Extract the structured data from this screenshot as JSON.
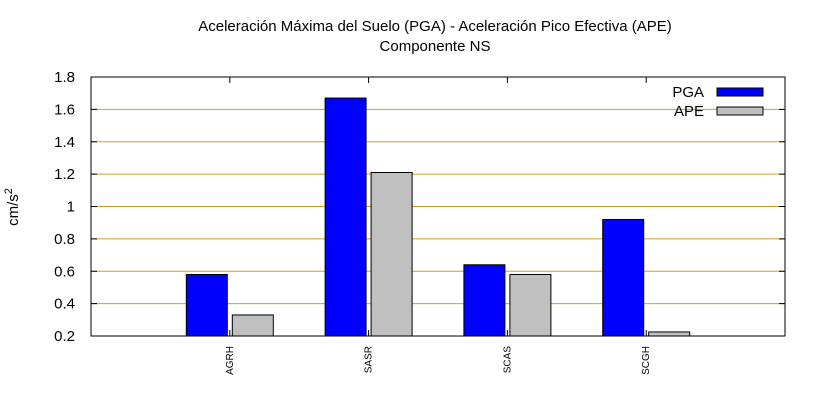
{
  "chart_data": {
    "type": "bar",
    "title": "Aceleración Máxima del Suelo (PGA) -  Aceleración Pico Efectiva (APE)",
    "subtitle": "Componente NS",
    "ylabel_base": "cm/s",
    "ylabel_sup": "2",
    "xlabel": "",
    "ylim": [
      0.2,
      1.8
    ],
    "yticks": [
      "0.2",
      "0.4",
      "0.6",
      "0.8",
      "1",
      "1.2",
      "1.4",
      "1.6",
      "1.8"
    ],
    "ytick_values": [
      0.2,
      0.4,
      0.6,
      0.8,
      1.0,
      1.2,
      1.4,
      1.6,
      1.8
    ],
    "grid": true,
    "legend_position": "top-right",
    "categories": [
      "AGRH",
      "SASR",
      "SCAS",
      "SCGH"
    ],
    "series": [
      {
        "name": "PGA",
        "color": "#0000ff",
        "values": [
          0.58,
          1.67,
          0.64,
          0.92
        ]
      },
      {
        "name": "APE",
        "color": "#c0c0c0",
        "values": [
          0.33,
          1.21,
          0.58,
          0.225
        ]
      }
    ]
  }
}
